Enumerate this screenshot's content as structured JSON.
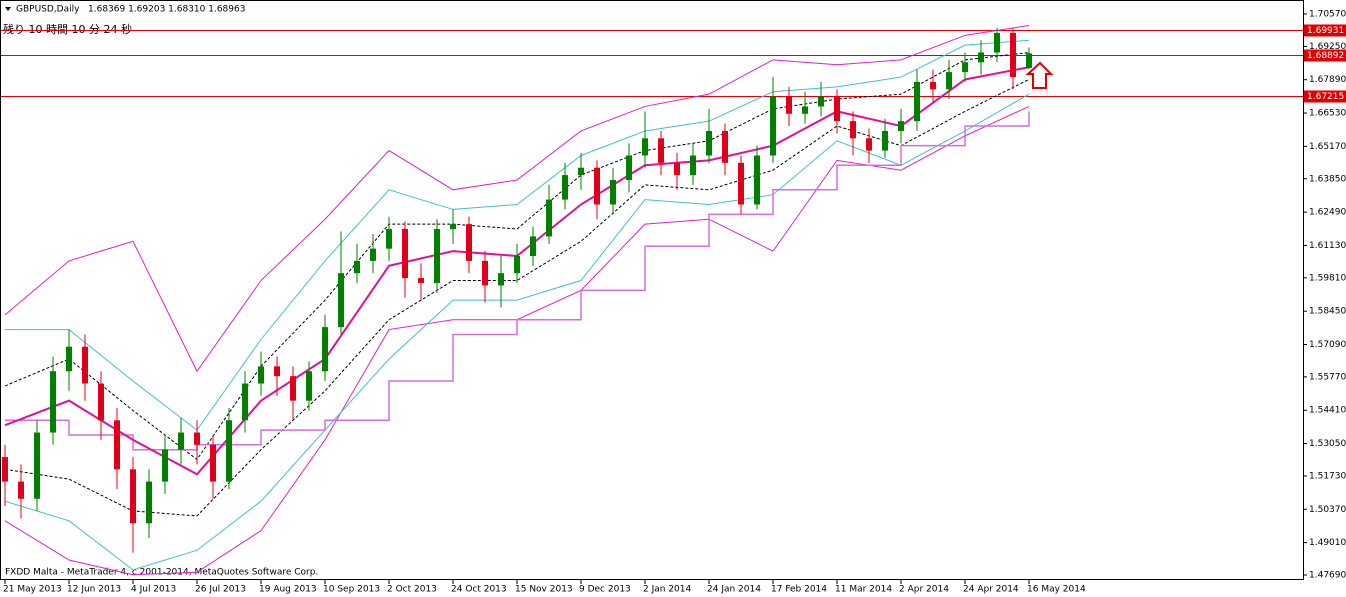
{
  "chart_data": {
    "type": "candlestick",
    "title": "GBPUSD,Daily",
    "info": "1.68369 1.69203 1.68310 1.68963",
    "countdown": "残り 10 時間 10 分 24 秒",
    "footer": "FXDD Malta - MetaTrader 4, c 2001-2014, MetaQuotes Software Corp.",
    "up_color": "#008000",
    "down_color": "#e0001a",
    "categories": [
      "21 May 2013",
      null,
      null,
      null,
      "12 Jun 2013",
      null,
      null,
      null,
      "4 Jul 2013",
      null,
      null,
      null,
      "26 Jul 2013",
      null,
      null,
      null,
      "19 Aug 2013",
      null,
      null,
      null,
      "10 Sep 2013",
      null,
      null,
      null,
      "2 Oct 2013",
      null,
      null,
      null,
      "24 Oct 2013",
      null,
      null,
      null,
      "15 Nov 2013",
      null,
      null,
      null,
      "9 Dec 2013",
      null,
      null,
      null,
      "2 Jan 2014",
      null,
      null,
      null,
      "24 Jan 2014",
      null,
      null,
      null,
      "17 Feb 2014",
      null,
      null,
      null,
      "11 Mar 2014",
      null,
      null,
      null,
      "2 Apr 2014",
      null,
      null,
      null,
      "24 Apr 2014",
      null,
      null,
      null,
      "16 May 2014"
    ],
    "ohlc": [
      [
        1.525,
        1.53,
        1.505,
        1.515
      ],
      [
        1.515,
        1.522,
        1.5,
        1.508
      ],
      [
        1.508,
        1.54,
        1.503,
        1.535
      ],
      [
        1.535,
        1.566,
        1.53,
        1.56
      ],
      [
        1.56,
        1.577,
        1.552,
        1.57
      ],
      [
        1.57,
        1.575,
        1.548,
        1.555
      ],
      [
        1.555,
        1.56,
        1.532,
        1.54
      ],
      [
        1.54,
        1.545,
        1.512,
        1.52
      ],
      [
        1.52,
        1.525,
        1.486,
        1.498
      ],
      [
        1.498,
        1.52,
        1.492,
        1.515
      ],
      [
        1.515,
        1.534,
        1.51,
        1.528
      ],
      [
        1.528,
        1.541,
        1.522,
        1.535
      ],
      [
        1.535,
        1.54,
        1.522,
        1.53
      ],
      [
        1.53,
        1.534,
        1.508,
        1.515
      ],
      [
        1.515,
        1.545,
        1.512,
        1.54
      ],
      [
        1.54,
        1.56,
        1.535,
        1.555
      ],
      [
        1.555,
        1.568,
        1.55,
        1.562
      ],
      [
        1.562,
        1.566,
        1.55,
        1.558
      ],
      [
        1.558,
        1.562,
        1.54,
        1.548
      ],
      [
        1.548,
        1.564,
        1.544,
        1.56
      ],
      [
        1.56,
        1.583,
        1.556,
        1.578
      ],
      [
        1.578,
        1.617,
        1.575,
        1.6
      ],
      [
        1.6,
        1.612,
        1.596,
        1.605
      ],
      [
        1.605,
        1.616,
        1.6,
        1.61
      ],
      [
        1.61,
        1.623,
        1.605,
        1.618
      ],
      [
        1.618,
        1.621,
        1.59,
        1.598
      ],
      [
        1.598,
        1.604,
        1.589,
        1.596
      ],
      [
        1.596,
        1.622,
        1.592,
        1.618
      ],
      [
        1.618,
        1.626,
        1.612,
        1.62
      ],
      [
        1.62,
        1.623,
        1.6,
        1.605
      ],
      [
        1.605,
        1.609,
        1.588,
        1.595
      ],
      [
        1.595,
        1.607,
        1.586,
        1.6
      ],
      [
        1.6,
        1.612,
        1.596,
        1.607
      ],
      [
        1.607,
        1.619,
        1.603,
        1.615
      ],
      [
        1.615,
        1.636,
        1.612,
        1.63
      ],
      [
        1.63,
        1.645,
        1.626,
        1.64
      ],
      [
        1.64,
        1.649,
        1.634,
        1.643
      ],
      [
        1.643,
        1.646,
        1.622,
        1.628
      ],
      [
        1.628,
        1.643,
        1.624,
        1.638
      ],
      [
        1.638,
        1.653,
        1.633,
        1.648
      ],
      [
        1.648,
        1.666,
        1.643,
        1.655
      ],
      [
        1.655,
        1.658,
        1.64,
        1.645
      ],
      [
        1.645,
        1.649,
        1.634,
        1.64
      ],
      [
        1.64,
        1.653,
        1.636,
        1.648
      ],
      [
        1.648,
        1.667,
        1.645,
        1.658
      ],
      [
        1.658,
        1.661,
        1.64,
        1.645
      ],
      [
        1.645,
        1.648,
        1.624,
        1.628
      ],
      [
        1.628,
        1.652,
        1.626,
        1.648
      ],
      [
        1.648,
        1.68,
        1.645,
        1.672
      ],
      [
        1.672,
        1.676,
        1.66,
        1.665
      ],
      [
        1.665,
        1.674,
        1.661,
        1.668
      ],
      [
        1.668,
        1.678,
        1.664,
        1.672
      ],
      [
        1.672,
        1.675,
        1.657,
        1.662
      ],
      [
        1.662,
        1.666,
        1.648,
        1.655
      ],
      [
        1.655,
        1.659,
        1.645,
        1.65
      ],
      [
        1.65,
        1.663,
        1.647,
        1.658
      ],
      [
        1.658,
        1.667,
        1.653,
        1.662
      ],
      [
        1.662,
        1.683,
        1.658,
        1.678
      ],
      [
        1.678,
        1.683,
        1.67,
        1.675
      ],
      [
        1.675,
        1.687,
        1.671,
        1.682
      ],
      [
        1.682,
        1.69,
        1.678,
        1.686
      ],
      [
        1.686,
        1.695,
        1.681,
        1.69
      ],
      [
        1.69,
        1.7,
        1.686,
        1.698
      ],
      [
        1.698,
        1.7,
        1.675,
        1.68
      ],
      [
        1.68369,
        1.69203,
        1.6831,
        1.68963
      ]
    ],
    "indicator_x": [
      0,
      4,
      8,
      12,
      16,
      20,
      24,
      28,
      32,
      36,
      40,
      44,
      48,
      52,
      56,
      60,
      64
    ],
    "indicators": [
      {
        "color": "#e020c8",
        "width": 1,
        "style": "solid",
        "values": [
          1.583,
          1.605,
          1.613,
          1.56,
          1.597,
          1.622,
          1.65,
          1.634,
          1.638,
          1.658,
          1.668,
          1.673,
          1.687,
          1.685,
          1.687,
          1.697,
          1.701
        ]
      },
      {
        "color": "#e020c8",
        "width": 1,
        "style": "solid",
        "values": [
          1.499,
          1.483,
          1.477,
          1.478,
          1.495,
          1.532,
          1.577,
          1.581,
          1.581,
          1.593,
          1.62,
          1.622,
          1.609,
          1.646,
          1.642,
          1.656,
          1.668
        ]
      },
      {
        "color": "#40c0d0",
        "width": 1,
        "style": "solid",
        "values": [
          1.577,
          1.577,
          1.556,
          1.536,
          1.573,
          1.605,
          1.634,
          1.626,
          1.628,
          1.648,
          1.658,
          1.662,
          1.674,
          1.676,
          1.68,
          1.693,
          1.695
        ]
      },
      {
        "color": "#40c0d0",
        "width": 1,
        "style": "solid",
        "values": [
          1.507,
          1.499,
          1.479,
          1.487,
          1.507,
          1.536,
          1.565,
          1.589,
          1.589,
          1.597,
          1.63,
          1.628,
          1.632,
          1.654,
          1.644,
          1.658,
          1.673
        ]
      },
      {
        "color": "#000000",
        "width": 1,
        "style": "dashed",
        "values": [
          1.554,
          1.565,
          1.544,
          1.524,
          1.562,
          1.589,
          1.62,
          1.62,
          1.618,
          1.64,
          1.65,
          1.654,
          1.667,
          1.671,
          1.673,
          1.687,
          1.69
        ]
      },
      {
        "color": "#000000",
        "width": 1,
        "style": "dashed",
        "values": [
          1.52,
          1.516,
          1.503,
          1.501,
          1.528,
          1.552,
          1.581,
          1.597,
          1.597,
          1.613,
          1.636,
          1.634,
          1.642,
          1.66,
          1.652,
          1.666,
          1.679
        ]
      },
      {
        "color": "#d070d8",
        "width": 1.5,
        "style": "step",
        "values": [
          1.54,
          1.534,
          1.528,
          1.53,
          1.536,
          1.54,
          1.556,
          1.575,
          1.581,
          1.593,
          1.611,
          1.624,
          1.634,
          1.644,
          1.652,
          1.66,
          1.666
        ]
      },
      {
        "color": "#e0109a",
        "width": 2,
        "style": "solid",
        "values": [
          1.538,
          1.548,
          1.532,
          1.518,
          1.548,
          1.565,
          1.603,
          1.609,
          1.607,
          1.628,
          1.644,
          1.646,
          1.652,
          1.666,
          1.66,
          1.679,
          1.684
        ]
      }
    ],
    "hlines": [
      1.69931,
      1.68892,
      1.67215
    ],
    "hline_color": "#e00000",
    "ylim": [
      1.4769,
      1.7057
    ],
    "yticks": [
      {
        "value": 1.7057,
        "label": "1.70570"
      },
      {
        "value": 1.6925,
        "label": "1.69250"
      },
      {
        "value": 1.6789,
        "label": "1.67890"
      },
      {
        "value": 1.6653,
        "label": "1.66530"
      },
      {
        "value": 1.6517,
        "label": "1.65170"
      },
      {
        "value": 1.6385,
        "label": "1.63850"
      },
      {
        "value": 1.6249,
        "label": "1.62490"
      },
      {
        "value": 1.6113,
        "label": "1.61130"
      },
      {
        "value": 1.5981,
        "label": "1.59810"
      },
      {
        "value": 1.5845,
        "label": "1.58450"
      },
      {
        "value": 1.5709,
        "label": "1.57090"
      },
      {
        "value": 1.5577,
        "label": "1.55770"
      },
      {
        "value": 1.5441,
        "label": "1.54410"
      },
      {
        "value": 1.5305,
        "label": "1.53050"
      },
      {
        "value": 1.5173,
        "label": "1.51730"
      },
      {
        "value": 1.5037,
        "label": "1.50370"
      },
      {
        "value": 1.4901,
        "label": "1.49010"
      },
      {
        "value": 1.4769,
        "label": "1.47690"
      }
    ]
  }
}
